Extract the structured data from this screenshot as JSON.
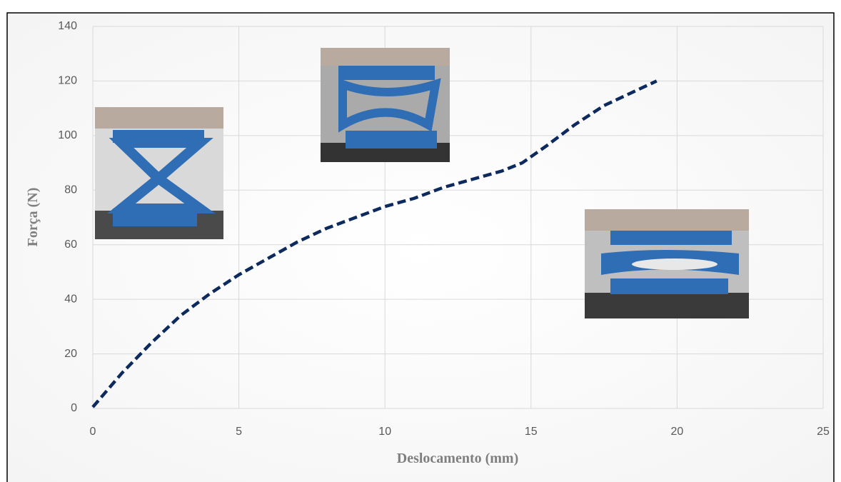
{
  "chart_data": {
    "type": "line",
    "x_label": "Deslocamento (mm)",
    "y_label": "Força (N)",
    "x": [
      0,
      1,
      2,
      3,
      4,
      5,
      6,
      7,
      8,
      9,
      10,
      11,
      12,
      13,
      14,
      14.7,
      15.5,
      16.5,
      17.5,
      18.5,
      19.3
    ],
    "series": [
      {
        "name": "Força",
        "color": "#0d2a5e",
        "values": [
          0.5,
          13,
          24,
          34,
          42,
          49,
          55,
          61,
          66,
          70,
          74,
          77,
          81,
          84,
          87,
          90,
          96,
          104,
          111,
          116,
          120
        ]
      }
    ],
    "xlim": [
      0,
      25
    ],
    "xticks": [
      0,
      5,
      10,
      15,
      20,
      25
    ],
    "ylim": [
      0,
      140
    ],
    "yticks": [
      0,
      20,
      40,
      60,
      80,
      100,
      120,
      140
    ],
    "grid": true,
    "line_style": "dashed"
  }
}
